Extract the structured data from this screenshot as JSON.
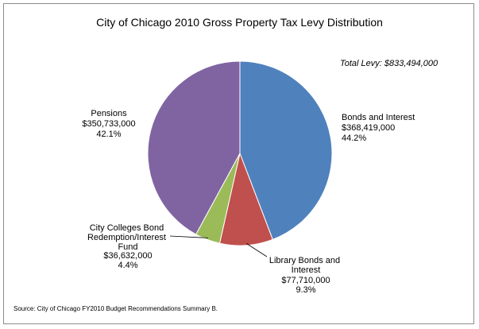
{
  "chart_data": {
    "type": "pie",
    "title": "City of Chicago 2010 Gross Property Tax Levy Distribution",
    "annotation": "Total Levy: $833,494,000",
    "source": "Source: City of Chicago FY2010 Budget Recommendations Summary B.",
    "slices": [
      {
        "name": "Bonds and Interest",
        "value": 368419000,
        "value_label": "$368,419,000",
        "percent": "44.2%",
        "color": "#4f81bd"
      },
      {
        "name": "Library Bonds and Interest",
        "value": 77710000,
        "value_label": "$77,710,000",
        "percent": "9.3%",
        "color": "#c0504d"
      },
      {
        "name": "City Colleges Bond Redemption/Interest Fund",
        "value": 36632000,
        "value_label": "$36,632,000",
        "percent": "4.4%",
        "color": "#9bbb59"
      },
      {
        "name": "Pensions",
        "value": 350733000,
        "value_label": "$350,733,000",
        "percent": "42.1%",
        "color": "#8064a2"
      }
    ]
  }
}
